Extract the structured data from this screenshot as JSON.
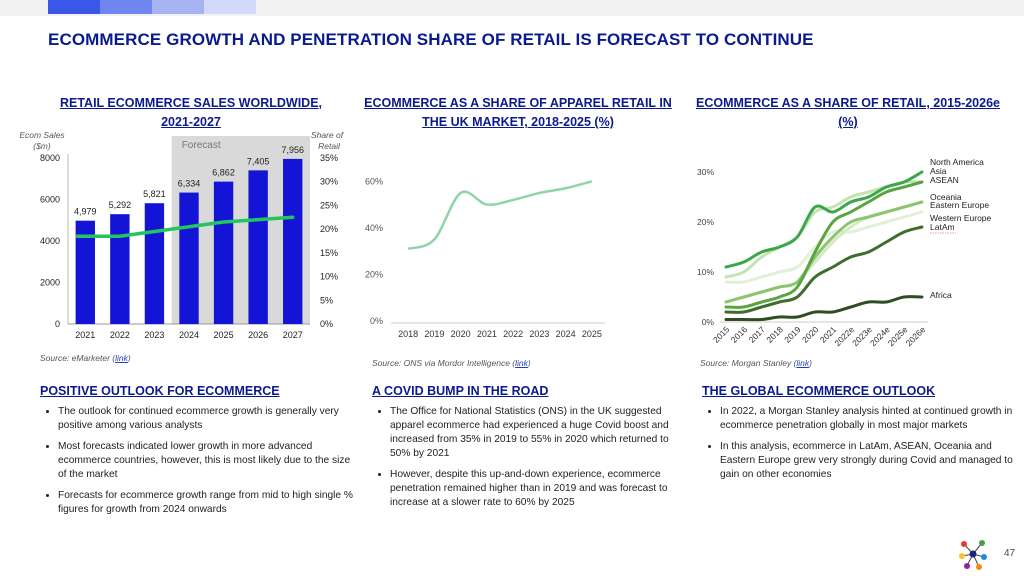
{
  "page": {
    "title": "ECOMMERCE GROWTH AND PENETRATION SHARE OF RETAIL IS FORECAST TO CONTINUE",
    "page_number": "47",
    "colors": {
      "navy": "#0a1a8f",
      "bar": "#1414d6",
      "line": "#22c55e"
    },
    "logo_icon": "molecule-logo-icon"
  },
  "panels": [
    {
      "heading": "RETAIL ECOMMERCE SALES WORLDWIDE, 2021-2027",
      "source_text": "Source: eMarketer (",
      "source_link": "link",
      "source_close": ")",
      "section_heading": "POSITIVE OUTLOOK FOR ECOMMERCE",
      "bullets": [
        "The outlook for continued ecommerce growth is generally very positive among various analysts",
        "Most forecasts indicated lower growth in more advanced ecommerce countries, however, this is most likely due to the size of the market",
        "Forecasts for ecommerce growth range from mid to high single % figures for growth from 2024 onwards"
      ]
    },
    {
      "heading": "ECOMMERCE AS A SHARE OF APPAREL RETAIL IN THE UK MARKET, 2018-2025 (%)",
      "source_text": "Source: ONS via Mordor Intelligence (",
      "source_link": "link",
      "source_close": ")",
      "section_heading": "A COVID BUMP IN THE ROAD",
      "bullets": [
        "The Office for National Statistics (ONS) in the UK suggested apparel ecommerce had experienced a huge Covid boost and increased from 35% in 2019 to 55% in 2020 which returned to 50% by 2021",
        "However, despite this up-and-down experience, ecommerce penetration remained higher than in 2019 and was forecast to increase at a slower rate to 60% by 2025"
      ]
    },
    {
      "heading": "ECOMMERCE AS A SHARE OF RETAIL, 2015-2026e (%)",
      "source_text": "Source: Morgan Stanley (",
      "source_link": "link",
      "source_close": ")",
      "section_heading": "THE GLOBAL ECOMMERCE OUTLOOK",
      "bullets": [
        "In 2022, a Morgan Stanley analysis hinted at continued growth in ecommerce penetration globally in most major markets",
        "In this analysis, ecommerce in LatAm, ASEAN, Oceania and Eastern Europe grew very strongly during Covid and managed to gain on other economies"
      ]
    }
  ],
  "chart_data": [
    {
      "type": "bar",
      "title": "RETAIL ECOMMERCE SALES WORLDWIDE, 2021-2027",
      "ylabel": "Ecom Sales ($m)",
      "y2label": "Share of Retail",
      "categories": [
        "2021",
        "2022",
        "2023",
        "2024",
        "2025",
        "2026",
        "2027"
      ],
      "ylim": [
        0,
        8000
      ],
      "yticks": [
        0,
        2000,
        4000,
        6000,
        8000
      ],
      "y2lim": [
        0,
        35
      ],
      "y2ticks": [
        "0%",
        "5%",
        "10%",
        "15%",
        "20%",
        "25%",
        "30%",
        "35%"
      ],
      "forecast_label": "Forecast",
      "forecast_from": "2024",
      "series": [
        {
          "type": "bar",
          "values": [
            4979,
            5292,
            5821,
            6334,
            6862,
            7405,
            7956
          ],
          "labels": [
            "4,979",
            "5,292",
            "5,821",
            "6,334",
            "6,862",
            "7,405",
            "7,956"
          ]
        },
        {
          "type": "line",
          "axis": "secondary",
          "values": [
            18.5,
            18.5,
            19.5,
            20.5,
            21.5,
            22,
            22.5
          ]
        }
      ]
    },
    {
      "type": "line",
      "title": "ECOMMERCE AS A SHARE OF APPAREL RETAIL IN THE UK MARKET, 2018-2025 (%)",
      "x": [
        "2018",
        "2019",
        "2020",
        "2021",
        "2022",
        "2023",
        "2024",
        "2025"
      ],
      "ylim": [
        0,
        70
      ],
      "yticks": [
        0,
        20,
        40,
        60
      ],
      "ytick_labels": [
        "0%",
        "20%",
        "40%",
        "60%"
      ],
      "series": [
        {
          "values": [
            31,
            35,
            55,
            50,
            52,
            55,
            57,
            60
          ]
        }
      ]
    },
    {
      "type": "line",
      "title": "ECOMMERCE AS A SHARE OF RETAIL, 2015-2026e (%)",
      "x": [
        "2015",
        "2016",
        "2017",
        "2018",
        "2019",
        "2020",
        "2021",
        "2022e",
        "2023e",
        "2024e",
        "2025e",
        "2026e"
      ],
      "ylim": [
        0,
        30
      ],
      "yticks": [
        0,
        10,
        20,
        30
      ],
      "ytick_labels": [
        "0%",
        "10%",
        "20%",
        "30%"
      ],
      "series": [
        {
          "name": "North America",
          "color": "#3aa84a",
          "values": [
            11,
            12,
            14,
            15,
            17,
            23,
            22,
            24,
            25,
            27,
            28,
            30
          ]
        },
        {
          "name": "Asia",
          "color": "#c4e3b2",
          "values": [
            9,
            10,
            13,
            15,
            17,
            22,
            23,
            25,
            26,
            27,
            28,
            28
          ]
        },
        {
          "name": "ASEAN",
          "color": "#58a53f",
          "values": [
            3,
            3,
            4,
            5,
            7,
            14,
            20,
            22,
            24,
            26,
            27,
            28
          ]
        },
        {
          "name": "Oceania",
          "color": "#d4e9c4",
          "values": [
            4,
            5,
            6,
            7,
            8,
            12,
            16,
            19,
            21,
            22,
            23,
            24
          ]
        },
        {
          "name": "Eastern Europe",
          "color": "#8dc46f",
          "values": [
            4,
            5,
            6,
            7,
            8,
            13,
            17,
            20,
            21,
            22,
            23,
            24
          ]
        },
        {
          "name": "Western Europe",
          "color": "#e3f0d8",
          "values": [
            8,
            8,
            9,
            10,
            11,
            15,
            18,
            18,
            19,
            20,
            21,
            22
          ]
        },
        {
          "name": "LatAm",
          "color": "#3d6e2c",
          "values": [
            2,
            2,
            3,
            4,
            5,
            9,
            11,
            13,
            14,
            16,
            18,
            19
          ]
        },
        {
          "name": "Africa",
          "color": "#2c4e22",
          "values": [
            0.5,
            0.5,
            0.5,
            1,
            1,
            2,
            2,
            3,
            4,
            4,
            5,
            5
          ]
        }
      ]
    }
  ]
}
